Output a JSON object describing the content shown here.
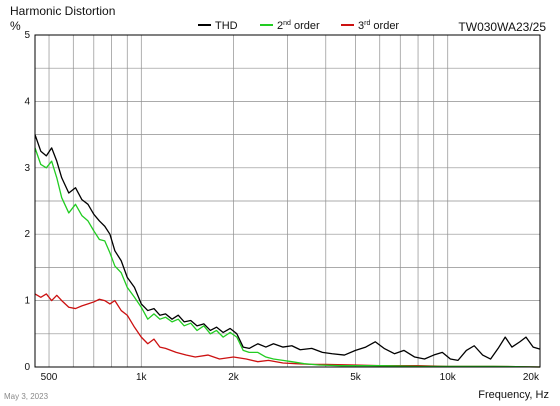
{
  "chart_data": {
    "type": "line",
    "title": "Harmonic Distortion",
    "ylabel": "%",
    "xlabel": "Frequency, Hz",
    "model": "TW030WA23/25",
    "x_scale": "log",
    "xlim": [
      450,
      20000
    ],
    "ylim": [
      0,
      5
    ],
    "grid": true,
    "legend_position": "top",
    "y_ticks": [
      0,
      1,
      2,
      3,
      4,
      5
    ],
    "x_ticks": [
      {
        "value": 500,
        "label": "500"
      },
      {
        "value": 1000,
        "label": "1k"
      },
      {
        "value": 2000,
        "label": "2k"
      },
      {
        "value": 5000,
        "label": "5k"
      },
      {
        "value": 10000,
        "label": "10k"
      },
      {
        "value": 20000,
        "label": "20k"
      }
    ],
    "series": [
      {
        "name": "THD",
        "legend_main": "THD",
        "legend_sup": "",
        "legend_tail": "",
        "color": "#000000",
        "points": [
          [
            450,
            3.5
          ],
          [
            470,
            3.25
          ],
          [
            490,
            3.18
          ],
          [
            510,
            3.3
          ],
          [
            530,
            3.1
          ],
          [
            550,
            2.85
          ],
          [
            580,
            2.62
          ],
          [
            610,
            2.7
          ],
          [
            640,
            2.52
          ],
          [
            670,
            2.45
          ],
          [
            700,
            2.3
          ],
          [
            730,
            2.2
          ],
          [
            760,
            2.12
          ],
          [
            790,
            2.0
          ],
          [
            820,
            1.75
          ],
          [
            860,
            1.6
          ],
          [
            900,
            1.35
          ],
          [
            950,
            1.2
          ],
          [
            1000,
            0.95
          ],
          [
            1050,
            0.85
          ],
          [
            1100,
            0.88
          ],
          [
            1150,
            0.78
          ],
          [
            1200,
            0.8
          ],
          [
            1260,
            0.72
          ],
          [
            1320,
            0.78
          ],
          [
            1380,
            0.68
          ],
          [
            1450,
            0.7
          ],
          [
            1520,
            0.62
          ],
          [
            1600,
            0.65
          ],
          [
            1680,
            0.55
          ],
          [
            1760,
            0.6
          ],
          [
            1850,
            0.52
          ],
          [
            1950,
            0.58
          ],
          [
            2050,
            0.5
          ],
          [
            2150,
            0.3
          ],
          [
            2250,
            0.28
          ],
          [
            2400,
            0.35
          ],
          [
            2550,
            0.3
          ],
          [
            2700,
            0.35
          ],
          [
            2900,
            0.3
          ],
          [
            3100,
            0.32
          ],
          [
            3300,
            0.26
          ],
          [
            3600,
            0.28
          ],
          [
            3900,
            0.22
          ],
          [
            4200,
            0.2
          ],
          [
            4600,
            0.18
          ],
          [
            5000,
            0.25
          ],
          [
            5400,
            0.3
          ],
          [
            5800,
            0.38
          ],
          [
            6200,
            0.28
          ],
          [
            6700,
            0.2
          ],
          [
            7200,
            0.25
          ],
          [
            7800,
            0.15
          ],
          [
            8400,
            0.12
          ],
          [
            9000,
            0.18
          ],
          [
            9600,
            0.22
          ],
          [
            10200,
            0.12
          ],
          [
            10800,
            0.1
          ],
          [
            11500,
            0.25
          ],
          [
            12200,
            0.32
          ],
          [
            13000,
            0.18
          ],
          [
            13800,
            0.12
          ],
          [
            14600,
            0.28
          ],
          [
            15400,
            0.45
          ],
          [
            16200,
            0.3
          ],
          [
            17200,
            0.38
          ],
          [
            18000,
            0.45
          ],
          [
            19000,
            0.3
          ],
          [
            20000,
            0.27
          ]
        ]
      },
      {
        "name": "2nd order",
        "legend_main": "2",
        "legend_sup": "nd",
        "legend_tail": " order",
        "color": "#22cc22",
        "points": [
          [
            450,
            3.3
          ],
          [
            470,
            3.05
          ],
          [
            490,
            3.0
          ],
          [
            510,
            3.1
          ],
          [
            530,
            2.85
          ],
          [
            550,
            2.55
          ],
          [
            580,
            2.32
          ],
          [
            610,
            2.45
          ],
          [
            640,
            2.28
          ],
          [
            670,
            2.2
          ],
          [
            700,
            2.05
          ],
          [
            730,
            1.92
          ],
          [
            760,
            1.9
          ],
          [
            790,
            1.72
          ],
          [
            820,
            1.52
          ],
          [
            860,
            1.42
          ],
          [
            900,
            1.2
          ],
          [
            950,
            1.05
          ],
          [
            1000,
            0.9
          ],
          [
            1050,
            0.72
          ],
          [
            1100,
            0.8
          ],
          [
            1150,
            0.72
          ],
          [
            1200,
            0.75
          ],
          [
            1260,
            0.68
          ],
          [
            1320,
            0.72
          ],
          [
            1380,
            0.62
          ],
          [
            1450,
            0.66
          ],
          [
            1520,
            0.55
          ],
          [
            1600,
            0.62
          ],
          [
            1680,
            0.5
          ],
          [
            1760,
            0.55
          ],
          [
            1850,
            0.45
          ],
          [
            1950,
            0.52
          ],
          [
            2050,
            0.45
          ],
          [
            2150,
            0.25
          ],
          [
            2250,
            0.22
          ],
          [
            2400,
            0.22
          ],
          [
            2550,
            0.15
          ],
          [
            2700,
            0.12
          ],
          [
            2900,
            0.1
          ],
          [
            3100,
            0.08
          ],
          [
            3400,
            0.05
          ],
          [
            3800,
            0.03
          ],
          [
            4500,
            0.02
          ],
          [
            6000,
            0.02
          ],
          [
            8000,
            0.01
          ],
          [
            10000,
            0.01
          ],
          [
            14000,
            0.01
          ],
          [
            20000,
            0.0
          ]
        ]
      },
      {
        "name": "3rd order",
        "legend_main": "3",
        "legend_sup": "rd",
        "legend_tail": " order",
        "color": "#cc1111",
        "points": [
          [
            450,
            1.1
          ],
          [
            470,
            1.05
          ],
          [
            490,
            1.1
          ],
          [
            510,
            1.0
          ],
          [
            530,
            1.08
          ],
          [
            550,
            1.0
          ],
          [
            580,
            0.9
          ],
          [
            610,
            0.88
          ],
          [
            640,
            0.92
          ],
          [
            670,
            0.95
          ],
          [
            700,
            0.98
          ],
          [
            730,
            1.02
          ],
          [
            760,
            1.0
          ],
          [
            790,
            0.95
          ],
          [
            820,
            1.0
          ],
          [
            860,
            0.85
          ],
          [
            900,
            0.78
          ],
          [
            950,
            0.6
          ],
          [
            1000,
            0.45
          ],
          [
            1050,
            0.35
          ],
          [
            1100,
            0.42
          ],
          [
            1150,
            0.3
          ],
          [
            1200,
            0.28
          ],
          [
            1300,
            0.22
          ],
          [
            1400,
            0.18
          ],
          [
            1500,
            0.15
          ],
          [
            1650,
            0.18
          ],
          [
            1800,
            0.12
          ],
          [
            2000,
            0.15
          ],
          [
            2200,
            0.12
          ],
          [
            2400,
            0.08
          ],
          [
            2600,
            0.1
          ],
          [
            2900,
            0.06
          ],
          [
            3200,
            0.05
          ],
          [
            3600,
            0.04
          ],
          [
            4000,
            0.04
          ],
          [
            5000,
            0.03
          ],
          [
            6000,
            0.02
          ],
          [
            8000,
            0.02
          ],
          [
            10000,
            0.01
          ],
          [
            14000,
            0.01
          ],
          [
            20000,
            0.0
          ]
        ]
      }
    ]
  },
  "footer": {
    "date": "May 3, 2023"
  }
}
